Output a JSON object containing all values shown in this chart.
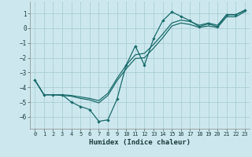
{
  "xlabel": "Humidex (Indice chaleur)",
  "bg_color": "#cce8ee",
  "grid_color": "#aacdd6",
  "line_color": "#1a6b6b",
  "xlim": [
    -0.5,
    23.5
  ],
  "ylim": [
    -6.8,
    1.8
  ],
  "xticks": [
    0,
    1,
    2,
    3,
    4,
    5,
    6,
    7,
    8,
    9,
    10,
    11,
    12,
    13,
    14,
    15,
    16,
    17,
    18,
    19,
    20,
    21,
    22,
    23
  ],
  "yticks": [
    -6,
    -5,
    -4,
    -3,
    -2,
    -1,
    0,
    1
  ],
  "line_a_y": [
    -3.5,
    -4.5,
    -4.5,
    -4.5,
    -5.0,
    -5.3,
    -5.5,
    -6.3,
    -6.2,
    -4.8,
    -2.5,
    -1.2,
    -2.5,
    -0.7,
    0.5,
    1.1,
    0.8,
    0.5,
    0.1,
    0.3,
    0.1,
    0.9,
    0.9,
    1.2
  ],
  "line_b_y": [
    -3.5,
    -4.5,
    -4.5,
    -4.5,
    -4.55,
    -4.65,
    -4.75,
    -4.9,
    -4.4,
    -3.4,
    -2.5,
    -1.8,
    -1.7,
    -1.1,
    -0.4,
    0.35,
    0.55,
    0.45,
    0.2,
    0.35,
    0.2,
    0.92,
    0.92,
    1.22
  ],
  "line_c_y": [
    -3.5,
    -4.5,
    -4.5,
    -4.55,
    -4.6,
    -4.75,
    -4.85,
    -5.05,
    -4.55,
    -3.55,
    -2.75,
    -2.05,
    -2.0,
    -1.35,
    -0.65,
    0.15,
    0.35,
    0.25,
    0.05,
    0.15,
    0.05,
    0.77,
    0.77,
    1.12
  ]
}
